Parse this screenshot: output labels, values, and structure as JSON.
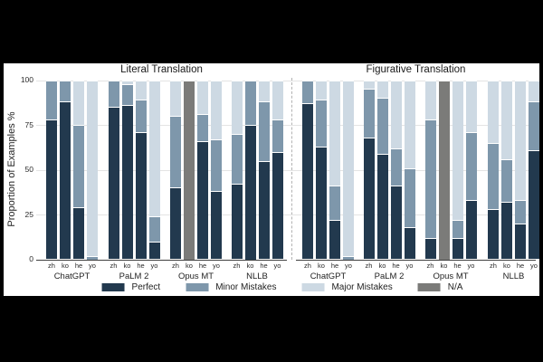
{
  "chart_data": {
    "type": "bar",
    "stacked": true,
    "orientation": "vertical",
    "ylabel": "Proportion of Examples %",
    "ylim": [
      0,
      100
    ],
    "yticks": [
      0,
      25,
      50,
      75,
      100
    ],
    "grid": "horizontal",
    "legend_position": "bottom",
    "languages": [
      "zh",
      "ko",
      "he",
      "yo"
    ],
    "categories": [
      {
        "key": "perfect",
        "label": "Perfect",
        "color": "#22394e"
      },
      {
        "key": "minor",
        "label": "Minor Mistakes",
        "color": "#7e97ab"
      },
      {
        "key": "major",
        "label": "Major Mistakes",
        "color": "#cdd9e3"
      },
      {
        "key": "na",
        "label": "N/A",
        "color": "#7b7b79"
      }
    ],
    "panels": [
      {
        "title": "Literal Translation",
        "groups": [
          {
            "system": "ChatGPT",
            "bars": [
              {
                "lang": "zh",
                "perfect": 78,
                "minor": 22,
                "major": 0,
                "na": 0
              },
              {
                "lang": "ko",
                "perfect": 88,
                "minor": 12,
                "major": 0,
                "na": 0
              },
              {
                "lang": "he",
                "perfect": 29,
                "minor": 46,
                "major": 25,
                "na": 0
              },
              {
                "lang": "yo",
                "perfect": 0,
                "minor": 2,
                "major": 98,
                "na": 0
              }
            ]
          },
          {
            "system": "PaLM 2",
            "bars": [
              {
                "lang": "zh",
                "perfect": 85,
                "minor": 15,
                "major": 0,
                "na": 0
              },
              {
                "lang": "ko",
                "perfect": 86,
                "minor": 12,
                "major": 2,
                "na": 0
              },
              {
                "lang": "he",
                "perfect": 71,
                "minor": 18,
                "major": 11,
                "na": 0
              },
              {
                "lang": "yo",
                "perfect": 10,
                "minor": 14,
                "major": 76,
                "na": 0
              }
            ]
          },
          {
            "system": "Opus MT",
            "bars": [
              {
                "lang": "zh",
                "perfect": 40,
                "minor": 40,
                "major": 20,
                "na": 0
              },
              {
                "lang": "ko",
                "perfect": 0,
                "minor": 0,
                "major": 0,
                "na": 100
              },
              {
                "lang": "he",
                "perfect": 66,
                "minor": 15,
                "major": 19,
                "na": 0
              },
              {
                "lang": "yo",
                "perfect": 38,
                "minor": 29,
                "major": 33,
                "na": 0
              }
            ]
          },
          {
            "system": "NLLB",
            "bars": [
              {
                "lang": "zh",
                "perfect": 42,
                "minor": 28,
                "major": 30,
                "na": 0
              },
              {
                "lang": "ko",
                "perfect": 75,
                "minor": 25,
                "major": 0,
                "na": 0
              },
              {
                "lang": "he",
                "perfect": 55,
                "minor": 33,
                "major": 12,
                "na": 0
              },
              {
                "lang": "yo",
                "perfect": 60,
                "minor": 18,
                "major": 22,
                "na": 0
              }
            ]
          }
        ]
      },
      {
        "title": "Figurative Translation",
        "groups": [
          {
            "system": "ChatGPT",
            "bars": [
              {
                "lang": "zh",
                "perfect": 87,
                "minor": 13,
                "major": 0,
                "na": 0
              },
              {
                "lang": "ko",
                "perfect": 63,
                "minor": 26,
                "major": 11,
                "na": 0
              },
              {
                "lang": "he",
                "perfect": 22,
                "minor": 19,
                "major": 59,
                "na": 0
              },
              {
                "lang": "yo",
                "perfect": 0,
                "minor": 2,
                "major": 98,
                "na": 0
              }
            ]
          },
          {
            "system": "PaLM 2",
            "bars": [
              {
                "lang": "zh",
                "perfect": 68,
                "minor": 27,
                "major": 5,
                "na": 0
              },
              {
                "lang": "ko",
                "perfect": 59,
                "minor": 31,
                "major": 10,
                "na": 0
              },
              {
                "lang": "he",
                "perfect": 41,
                "minor": 21,
                "major": 38,
                "na": 0
              },
              {
                "lang": "yo",
                "perfect": 18,
                "minor": 33,
                "major": 49,
                "na": 0
              }
            ]
          },
          {
            "system": "Opus MT",
            "bars": [
              {
                "lang": "zh",
                "perfect": 12,
                "minor": 66,
                "major": 22,
                "na": 0
              },
              {
                "lang": "ko",
                "perfect": 0,
                "minor": 0,
                "major": 0,
                "na": 100
              },
              {
                "lang": "he",
                "perfect": 12,
                "minor": 10,
                "major": 78,
                "na": 0
              },
              {
                "lang": "yo",
                "perfect": 33,
                "minor": 38,
                "major": 29,
                "na": 0
              }
            ]
          },
          {
            "system": "NLLB",
            "bars": [
              {
                "lang": "zh",
                "perfect": 28,
                "minor": 37,
                "major": 35,
                "na": 0
              },
              {
                "lang": "ko",
                "perfect": 32,
                "minor": 24,
                "major": 44,
                "na": 0
              },
              {
                "lang": "he",
                "perfect": 20,
                "minor": 13,
                "major": 67,
                "na": 0
              },
              {
                "lang": "yo",
                "perfect": 61,
                "minor": 27,
                "major": 12,
                "na": 0
              }
            ]
          }
        ]
      }
    ],
    "colors": {
      "background": "#ffffff",
      "page_background": "#000000",
      "gridline": "#e4e4e4",
      "axis": "#3f3f3f",
      "text": "#1f1f1f"
    }
  }
}
